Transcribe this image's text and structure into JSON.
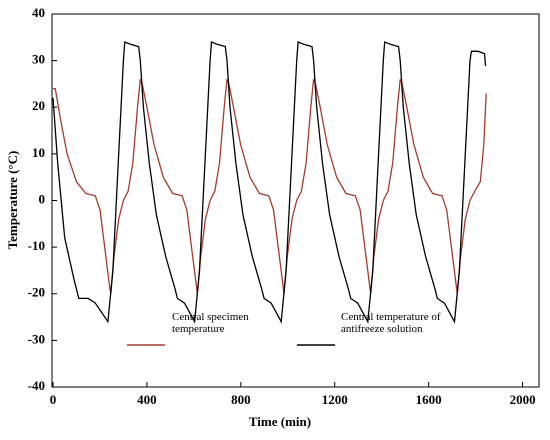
{
  "chart_data": {
    "type": "line",
    "xlabel": "Time (min)",
    "ylabel": "Temperature (°C)",
    "xlim": [
      0,
      2070
    ],
    "xticks": [
      0,
      400,
      800,
      1200,
      1600,
      2000
    ],
    "ylim": [
      -40,
      40
    ],
    "yticks": [
      -40,
      -30,
      -20,
      -10,
      0,
      10,
      20,
      30,
      40
    ],
    "grid": false,
    "series": [
      {
        "name": "Central specimen temperature",
        "color": "#a33b2e",
        "x": [
          0,
          10,
          30,
          60,
          100,
          140,
          180,
          200,
          220,
          240,
          246,
          260,
          280,
          300,
          320,
          340,
          360,
          372,
          380,
          400,
          430,
          470,
          510,
          550,
          570,
          590,
          610,
          615,
          629,
          649,
          669,
          689,
          709,
          729,
          741,
          749,
          769,
          799,
          839,
          879,
          919,
          939,
          959,
          979,
          984,
          998,
          1018,
          1038,
          1058,
          1078,
          1098,
          1110,
          1118,
          1138,
          1168,
          1208,
          1248,
          1288,
          1308,
          1328,
          1348,
          1353,
          1367,
          1387,
          1407,
          1427,
          1447,
          1467,
          1479,
          1487,
          1507,
          1537,
          1577,
          1617,
          1657,
          1677,
          1697,
          1717,
          1722,
          1736,
          1756,
          1776,
          1796,
          1820,
          1835,
          1845
        ],
        "values": [
          24,
          24,
          18,
          10,
          4,
          1.5,
          1,
          -2,
          -10,
          -18,
          -20,
          -12,
          -4,
          0,
          2,
          8,
          20,
          26,
          25,
          20,
          12,
          5,
          1.5,
          1,
          -2,
          -10,
          -18,
          -20,
          -12,
          -4,
          0,
          2,
          8,
          20,
          26,
          25,
          20,
          12,
          5,
          1.5,
          1,
          -2,
          -10,
          -18,
          -20,
          -12,
          -4,
          0,
          2,
          8,
          20,
          26,
          25,
          20,
          12,
          5,
          1.5,
          1,
          -2,
          -10,
          -18,
          -20,
          -12,
          -4,
          0,
          2,
          8,
          20,
          26,
          25,
          20,
          12,
          5,
          1.5,
          1,
          -2,
          -10,
          -18,
          -20,
          -12,
          -4,
          0,
          2,
          4,
          12,
          23
        ]
      },
      {
        "name": "Central temperature of antifreeze solution",
        "color": "#000000",
        "x": [
          0,
          20,
          50,
          90,
          110,
          150,
          180,
          234,
          255,
          280,
          300,
          306,
          330,
          365,
          372,
          385,
          410,
          440,
          480,
          520,
          530,
          560,
          603,
          624,
          649,
          669,
          675,
          699,
          734,
          741,
          754,
          779,
          809,
          849,
          889,
          899,
          929,
          972,
          993,
          1018,
          1038,
          1044,
          1068,
          1103,
          1110,
          1123,
          1148,
          1178,
          1218,
          1258,
          1268,
          1298,
          1341,
          1362,
          1387,
          1407,
          1413,
          1437,
          1472,
          1479,
          1492,
          1517,
          1547,
          1587,
          1627,
          1637,
          1667,
          1710,
          1731,
          1756,
          1776,
          1782,
          1810,
          1838,
          1842,
          1845
        ],
        "values": [
          22,
          8,
          -8,
          -17,
          -21,
          -21,
          -22,
          -26,
          -15,
          10,
          30,
          34,
          33.5,
          33,
          30,
          20,
          8,
          -3,
          -12,
          -19,
          -21,
          -22,
          -26,
          -15,
          10,
          30,
          34,
          33.5,
          33,
          30,
          20,
          8,
          -3,
          -12,
          -19,
          -21,
          -22,
          -26,
          -15,
          10,
          30,
          34,
          33.5,
          33,
          30,
          20,
          8,
          -3,
          -12,
          -19,
          -21,
          -22,
          -26,
          -15,
          10,
          30,
          34,
          33.5,
          33,
          30,
          20,
          8,
          -3,
          -12,
          -19,
          -21,
          -22,
          -26,
          -15,
          10,
          30,
          32,
          32,
          31.5,
          29,
          29
        ]
      }
    ]
  }
}
